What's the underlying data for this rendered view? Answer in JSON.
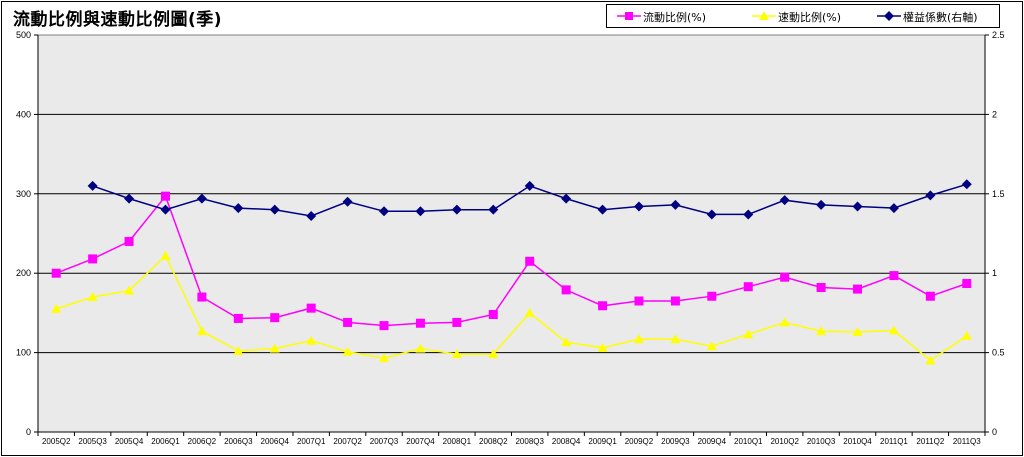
{
  "chart_data": {
    "type": "line",
    "title": "流動比例與速動比例圖(季)",
    "categories": [
      "2005Q2",
      "2005Q3",
      "2005Q4",
      "2006Q1",
      "2006Q2",
      "2006Q3",
      "2006Q4",
      "2007Q1",
      "2007Q2",
      "2007Q3",
      "2007Q4",
      "2008Q1",
      "2008Q2",
      "2008Q3",
      "2008Q4",
      "2009Q1",
      "2009Q2",
      "2009Q3",
      "2009Q4",
      "2010Q1",
      "2010Q2",
      "2010Q3",
      "2010Q4",
      "2011Q1",
      "2011Q2",
      "2011Q3"
    ],
    "y_left": {
      "ylim": [
        0,
        500
      ],
      "ticks": [
        "0",
        "100",
        "200",
        "300",
        "400",
        "500"
      ]
    },
    "y_right": {
      "ylim": [
        0,
        2.5
      ],
      "ticks": [
        "0",
        "0.5",
        "1",
        "1.5",
        "2",
        "2.5"
      ]
    },
    "grid": "horizontal",
    "legend_position": "top-right",
    "series": [
      {
        "name": "流動比例(%)",
        "axis": "left",
        "color": "#ff00ff",
        "marker": "square",
        "values": [
          200,
          218,
          240,
          297,
          170,
          143,
          144,
          156,
          138,
          134,
          137,
          138,
          148,
          215,
          179,
          159,
          165,
          165,
          171,
          183,
          195,
          182,
          180,
          197,
          171,
          187
        ]
      },
      {
        "name": "速動比例(%)",
        "axis": "left",
        "color": "#ffff00",
        "marker": "triangle",
        "values": [
          155,
          170,
          178,
          222,
          127,
          102,
          105,
          115,
          101,
          93,
          105,
          98,
          98,
          150,
          113,
          106,
          117,
          117,
          108,
          123,
          138,
          127,
          126,
          128,
          90,
          121
        ]
      },
      {
        "name": "權益係數(右軸)",
        "axis": "right",
        "color": "#000080",
        "marker": "diamond",
        "values": [
          null,
          1.55,
          1.47,
          1.4,
          1.47,
          1.41,
          1.4,
          1.36,
          1.45,
          1.39,
          1.39,
          1.4,
          1.4,
          1.55,
          1.47,
          1.4,
          1.42,
          1.43,
          1.37,
          1.37,
          1.46,
          1.43,
          1.42,
          1.41,
          1.49,
          1.56
        ]
      }
    ]
  }
}
